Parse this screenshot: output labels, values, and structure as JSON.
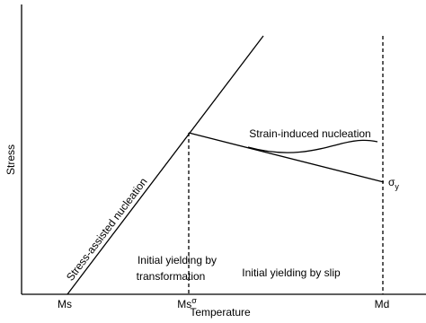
{
  "axes": {
    "y_label": "Stress",
    "x_label": "Temperature"
  },
  "x_marks": [
    {
      "label": "Ms"
    },
    {
      "label": "Ms",
      "superscript": "σ"
    },
    {
      "label": "Md"
    }
  ],
  "curves": {
    "stress_assisted": "Stress-assisted nucleation",
    "strain_induced": "Strain-induced nucleation",
    "yield": {
      "label": "σ",
      "subscript": "y"
    }
  },
  "regions": {
    "transformation": [
      "Initial yielding by",
      "transformation"
    ],
    "slip": "Initial yielding by slip"
  }
}
